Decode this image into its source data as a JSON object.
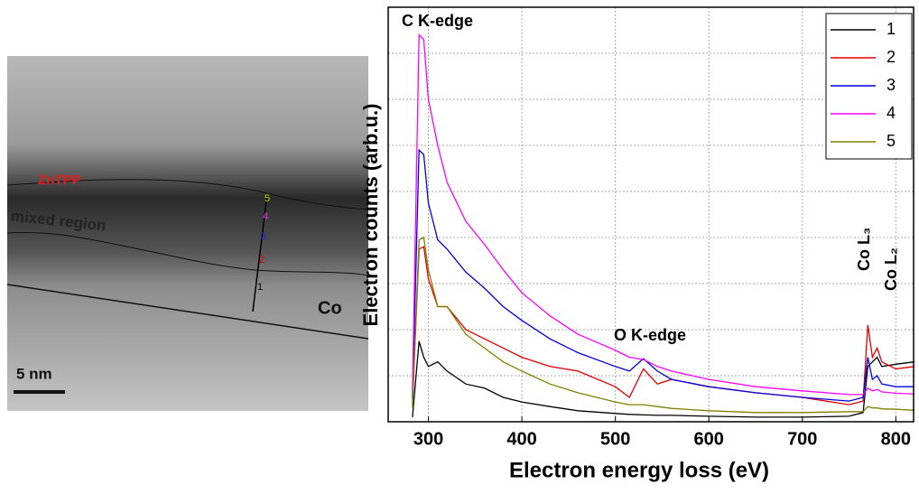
{
  "micrograph": {
    "layer_top": "ZnTPP",
    "layer_mid": "mixed region",
    "substrate": "Co",
    "scale_bar": "5 nm",
    "profile_points": [
      "1",
      "2",
      "3",
      "4",
      "5"
    ]
  },
  "chart_data": {
    "type": "line",
    "xlabel": "Electron energy loss (eV)",
    "ylabel": "Electron counts (arb.u.)",
    "annotations": [
      "C  K-edge",
      "O K-edge",
      "Co L₃",
      "Co L₂"
    ],
    "x": [
      283,
      290,
      295,
      300,
      310,
      320,
      340,
      360,
      380,
      400,
      430,
      460,
      500,
      515,
      530,
      545,
      560,
      600,
      650,
      700,
      750,
      765,
      770,
      775,
      780,
      785,
      800,
      820
    ],
    "series": [
      {
        "name": "1",
        "color": "#000000",
        "values": [
          0.1,
          1.75,
          1.4,
          1.2,
          1.3,
          1.1,
          0.82,
          0.73,
          0.53,
          0.43,
          0.33,
          0.24,
          0.18,
          0.16,
          0.15,
          0.14,
          0.14,
          0.12,
          0.1,
          0.1,
          0.12,
          0.2,
          1.2,
          1.3,
          1.4,
          1.2,
          1.25,
          1.3
        ]
      },
      {
        "name": "2",
        "color": "#e00000",
        "values": [
          0.4,
          3.75,
          3.8,
          3.1,
          2.5,
          2.5,
          2.0,
          1.8,
          1.6,
          1.4,
          1.2,
          1.1,
          0.76,
          0.53,
          1.15,
          0.82,
          0.92,
          0.76,
          0.63,
          0.53,
          0.37,
          0.45,
          2.1,
          1.4,
          1.6,
          1.3,
          1.15,
          1.2
        ]
      },
      {
        "name": "3",
        "color": "#0000e0",
        "values": [
          0.5,
          5.9,
          5.8,
          4.75,
          3.95,
          3.75,
          3.25,
          2.9,
          2.5,
          2.2,
          1.8,
          1.5,
          1.2,
          1.1,
          1.37,
          1.1,
          0.92,
          0.76,
          0.63,
          0.53,
          0.45,
          0.53,
          1.4,
          0.92,
          1.0,
          0.82,
          0.76,
          0.76
        ]
      },
      {
        "name": "4",
        "color": "#ff00ff",
        "values": [
          0.7,
          8.4,
          8.3,
          7.0,
          6.0,
          5.2,
          4.35,
          3.85,
          3.3,
          2.8,
          2.3,
          1.9,
          1.55,
          1.4,
          1.35,
          1.2,
          1.1,
          0.92,
          0.76,
          0.67,
          0.59,
          0.59,
          0.73,
          0.67,
          0.7,
          0.65,
          0.62,
          0.6
        ]
      },
      {
        "name": "5",
        "color": "#808000",
        "values": [
          0.3,
          3.95,
          4.0,
          3.3,
          2.5,
          2.5,
          1.9,
          1.6,
          1.3,
          1.1,
          0.82,
          0.63,
          0.43,
          0.37,
          0.37,
          0.33,
          0.29,
          0.24,
          0.2,
          0.2,
          0.22,
          0.22,
          0.33,
          0.3,
          0.3,
          0.28,
          0.27,
          0.25
        ]
      }
    ],
    "xlim": [
      257,
      819
    ],
    "ylim": [
      0,
      9
    ],
    "xticks": [
      300,
      400,
      500,
      600,
      700,
      800
    ],
    "yticks": [
      1,
      2,
      3,
      4,
      5,
      6,
      7,
      8
    ],
    "grid": true,
    "legend": "upper right"
  }
}
